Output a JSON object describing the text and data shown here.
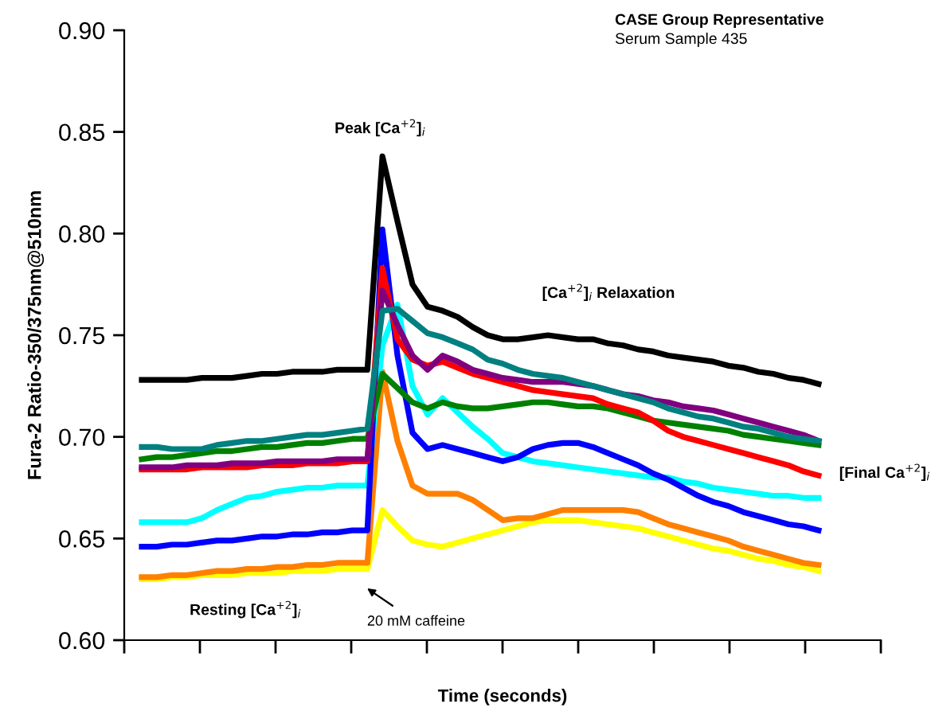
{
  "chart_data": {
    "type": "line",
    "title": "CASE Group Representative",
    "subtitle": "Serum Sample 435",
    "xlabel": "Time (seconds)",
    "ylabel": "Fura-2 Ratio-350/375nm@510nm",
    "categories": [
      null,
      null,
      null,
      null,
      null,
      null,
      null,
      null,
      null,
      null,
      null,
      null,
      null,
      null,
      null,
      null,
      null,
      null,
      null,
      null,
      null,
      null,
      null,
      null,
      null,
      null,
      null,
      null,
      null,
      null,
      null,
      null,
      null,
      null,
      null,
      null,
      null,
      null,
      null,
      null,
      null,
      null,
      null,
      null,
      null,
      null
    ],
    "series": [
      {
        "color": "#ffff00",
        "values": [
          0.63,
          0.63,
          0.631,
          0.631,
          0.632,
          0.632,
          0.632,
          0.633,
          0.633,
          0.633,
          0.634,
          0.634,
          0.634,
          0.635,
          0.635,
          0.635,
          0.664,
          0.656,
          0.649,
          0.647,
          0.646,
          0.648,
          0.65,
          0.652,
          0.654,
          0.656,
          0.658,
          0.659,
          0.659,
          0.659,
          0.658,
          0.657,
          0.656,
          0.655,
          0.653,
          0.651,
          0.649,
          0.647,
          0.645,
          0.644,
          0.642,
          0.64,
          0.639,
          0.637,
          0.636,
          0.634
        ]
      },
      {
        "color": "#ff8000",
        "values": [
          0.631,
          0.631,
          0.632,
          0.632,
          0.633,
          0.634,
          0.634,
          0.635,
          0.635,
          0.636,
          0.636,
          0.637,
          0.637,
          0.638,
          0.638,
          0.638,
          0.732,
          0.698,
          0.676,
          0.672,
          0.672,
          0.672,
          0.669,
          0.664,
          0.659,
          0.66,
          0.66,
          0.662,
          0.664,
          0.664,
          0.664,
          0.664,
          0.664,
          0.663,
          0.66,
          0.657,
          0.655,
          0.653,
          0.651,
          0.649,
          0.646,
          0.644,
          0.642,
          0.64,
          0.638,
          0.637
        ]
      },
      {
        "color": "#00ffff",
        "values": [
          0.658,
          0.658,
          0.658,
          0.658,
          0.66,
          0.664,
          0.667,
          0.67,
          0.671,
          0.673,
          0.674,
          0.675,
          0.675,
          0.676,
          0.676,
          0.676,
          0.745,
          0.765,
          0.725,
          0.711,
          0.719,
          0.712,
          0.705,
          0.699,
          0.692,
          0.69,
          0.688,
          0.687,
          0.686,
          0.685,
          0.684,
          0.683,
          0.682,
          0.681,
          0.68,
          0.68,
          0.678,
          0.677,
          0.675,
          0.674,
          0.673,
          0.672,
          0.671,
          0.671,
          0.67,
          0.67
        ]
      },
      {
        "color": "#0000ff",
        "values": [
          0.646,
          0.646,
          0.647,
          0.647,
          0.648,
          0.649,
          0.649,
          0.65,
          0.651,
          0.651,
          0.652,
          0.652,
          0.653,
          0.653,
          0.654,
          0.654,
          0.802,
          0.74,
          0.702,
          0.694,
          0.696,
          0.694,
          0.692,
          0.69,
          0.688,
          0.69,
          0.694,
          0.696,
          0.697,
          0.697,
          0.695,
          0.692,
          0.689,
          0.686,
          0.682,
          0.679,
          0.675,
          0.671,
          0.668,
          0.666,
          0.663,
          0.661,
          0.659,
          0.657,
          0.656,
          0.654
        ]
      },
      {
        "color": "#008000",
        "values": [
          0.689,
          0.69,
          0.69,
          0.691,
          0.692,
          0.693,
          0.693,
          0.694,
          0.695,
          0.695,
          0.696,
          0.697,
          0.697,
          0.698,
          0.699,
          0.699,
          0.731,
          0.724,
          0.717,
          0.714,
          0.717,
          0.715,
          0.714,
          0.714,
          0.715,
          0.716,
          0.717,
          0.717,
          0.716,
          0.715,
          0.715,
          0.714,
          0.712,
          0.71,
          0.708,
          0.707,
          0.706,
          0.705,
          0.704,
          0.703,
          0.701,
          0.7,
          0.699,
          0.698,
          0.697,
          0.696
        ]
      },
      {
        "color": "#ff0000",
        "values": [
          0.684,
          0.684,
          0.684,
          0.684,
          0.685,
          0.685,
          0.685,
          0.685,
          0.686,
          0.686,
          0.686,
          0.687,
          0.687,
          0.687,
          0.688,
          0.688,
          0.783,
          0.748,
          0.738,
          0.735,
          0.737,
          0.734,
          0.731,
          0.729,
          0.727,
          0.725,
          0.723,
          0.722,
          0.721,
          0.72,
          0.719,
          0.716,
          0.714,
          0.712,
          0.708,
          0.703,
          0.7,
          0.698,
          0.696,
          0.694,
          0.692,
          0.69,
          0.688,
          0.686,
          0.683,
          0.681
        ]
      },
      {
        "color": "#800080",
        "values": [
          0.685,
          0.685,
          0.685,
          0.686,
          0.686,
          0.686,
          0.687,
          0.687,
          0.687,
          0.688,
          0.688,
          0.688,
          0.688,
          0.689,
          0.689,
          0.689,
          0.772,
          0.755,
          0.74,
          0.733,
          0.74,
          0.737,
          0.733,
          0.731,
          0.729,
          0.728,
          0.727,
          0.727,
          0.727,
          0.726,
          0.725,
          0.723,
          0.721,
          0.72,
          0.718,
          0.717,
          0.715,
          0.714,
          0.713,
          0.711,
          0.709,
          0.707,
          0.705,
          0.703,
          0.701,
          0.698
        ]
      },
      {
        "color": "#008080",
        "values": [
          0.695,
          0.695,
          0.694,
          0.694,
          0.694,
          0.696,
          0.697,
          0.698,
          0.698,
          0.699,
          0.7,
          0.701,
          0.701,
          0.702,
          0.703,
          0.704,
          0.762,
          0.763,
          0.757,
          0.751,
          0.749,
          0.746,
          0.743,
          0.738,
          0.736,
          0.733,
          0.731,
          0.73,
          0.729,
          0.727,
          0.725,
          0.723,
          0.721,
          0.719,
          0.717,
          0.714,
          0.712,
          0.71,
          0.709,
          0.707,
          0.705,
          0.704,
          0.702,
          0.7,
          0.699,
          0.698
        ]
      },
      {
        "color": "#000000",
        "values": [
          0.728,
          0.728,
          0.728,
          0.728,
          0.729,
          0.729,
          0.729,
          0.73,
          0.731,
          0.731,
          0.732,
          0.732,
          0.732,
          0.733,
          0.733,
          0.733,
          0.838,
          0.806,
          0.775,
          0.764,
          0.762,
          0.759,
          0.754,
          0.75,
          0.748,
          0.748,
          0.749,
          0.75,
          0.749,
          0.748,
          0.748,
          0.746,
          0.745,
          0.743,
          0.742,
          0.74,
          0.739,
          0.738,
          0.737,
          0.735,
          0.734,
          0.732,
          0.731,
          0.729,
          0.728,
          0.726
        ]
      }
    ],
    "ylim": [
      0.6,
      0.9
    ],
    "yticks": [
      {
        "value": 0.6,
        "label": "0.60"
      },
      {
        "value": 0.65,
        "label": "0.65"
      },
      {
        "value": 0.7,
        "label": "0.70"
      },
      {
        "value": 0.75,
        "label": "0.75"
      },
      {
        "value": 0.8,
        "label": "0.80"
      },
      {
        "value": 0.85,
        "label": "0.85"
      },
      {
        "value": 0.9,
        "label": "0.90"
      }
    ],
    "tick_labels": "y",
    "marker": "none",
    "line_style": "solid",
    "annotations": [
      "Peak [Ca$^{+2}$]$_{i}$",
      "[Ca$^{+2}$]$_{i}$ Relaxation",
      "[Final Ca$^{+2}$]$_{i}$",
      "Resting [Ca$^{+2}$]$_{i}$",
      "20 mM caffeine"
    ]
  }
}
